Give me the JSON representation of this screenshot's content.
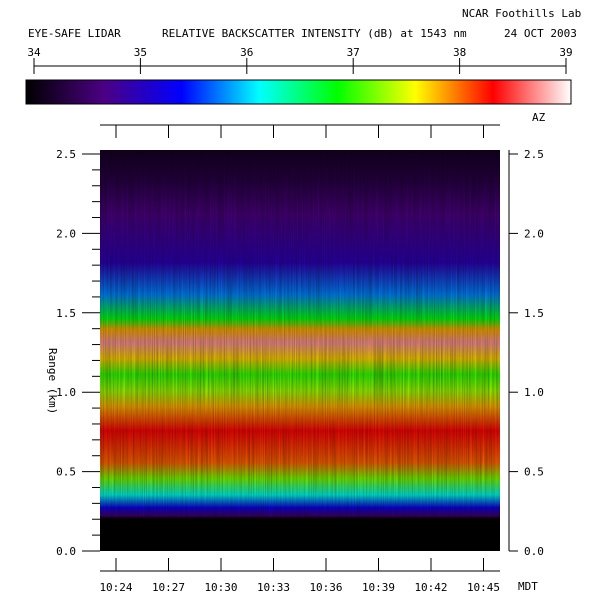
{
  "header": {
    "lab": "NCAR Foothills Lab",
    "instrument": "EYE-SAFE LIDAR",
    "title": "RELATIVE BACKSCATTER INTENSITY (dB) at 1543 nm",
    "date": "24 OCT 2003"
  },
  "colorbar": {
    "ticks": [
      "34",
      "35",
      "36",
      "37",
      "38",
      "39"
    ],
    "range": [
      34,
      39
    ],
    "unit_label": "AZ",
    "colors": [
      "#000000",
      "#4b0082",
      "#0000ff",
      "#00ffff",
      "#00ff00",
      "#ffff00",
      "#ff0000",
      "#ffffff"
    ]
  },
  "chart_data": {
    "type": "heatmap",
    "title": "RELATIVE BACKSCATTER INTENSITY (dB) at 1543 nm",
    "xlabel": "MDT",
    "ylabel": "Range (km)",
    "x_ticks": [
      "10:24",
      "10:27",
      "10:30",
      "10:33",
      "10:36",
      "10:39",
      "10:42",
      "10:45"
    ],
    "y_ticks": [
      "0.0",
      "0.5",
      "1.0",
      "1.5",
      "2.0",
      "2.5"
    ],
    "ylim": [
      0.0,
      2.5
    ],
    "value_range_db": [
      34,
      39
    ],
    "profile": [
      {
        "range_km": 0.0,
        "db": 34.0
      },
      {
        "range_km": 0.2,
        "db": 34.0
      },
      {
        "range_km": 0.22,
        "db": 34.6
      },
      {
        "range_km": 0.27,
        "db": 35.3
      },
      {
        "range_km": 0.35,
        "db": 36.2
      },
      {
        "range_km": 0.45,
        "db": 37.2
      },
      {
        "range_km": 0.55,
        "db": 38.0
      },
      {
        "range_km": 0.75,
        "db": 38.3
      },
      {
        "range_km": 0.9,
        "db": 37.8
      },
      {
        "range_km": 1.0,
        "db": 37.3
      },
      {
        "range_km": 1.1,
        "db": 37.0
      },
      {
        "range_km": 1.2,
        "db": 37.7
      },
      {
        "range_km": 1.3,
        "db": 38.7
      },
      {
        "range_km": 1.38,
        "db": 37.8
      },
      {
        "range_km": 1.45,
        "db": 36.8
      },
      {
        "range_km": 1.6,
        "db": 35.8
      },
      {
        "range_km": 1.8,
        "db": 35.0
      },
      {
        "range_km": 2.1,
        "db": 34.7
      },
      {
        "range_km": 2.3,
        "db": 34.4
      },
      {
        "range_km": 2.5,
        "db": 34.2
      }
    ]
  }
}
